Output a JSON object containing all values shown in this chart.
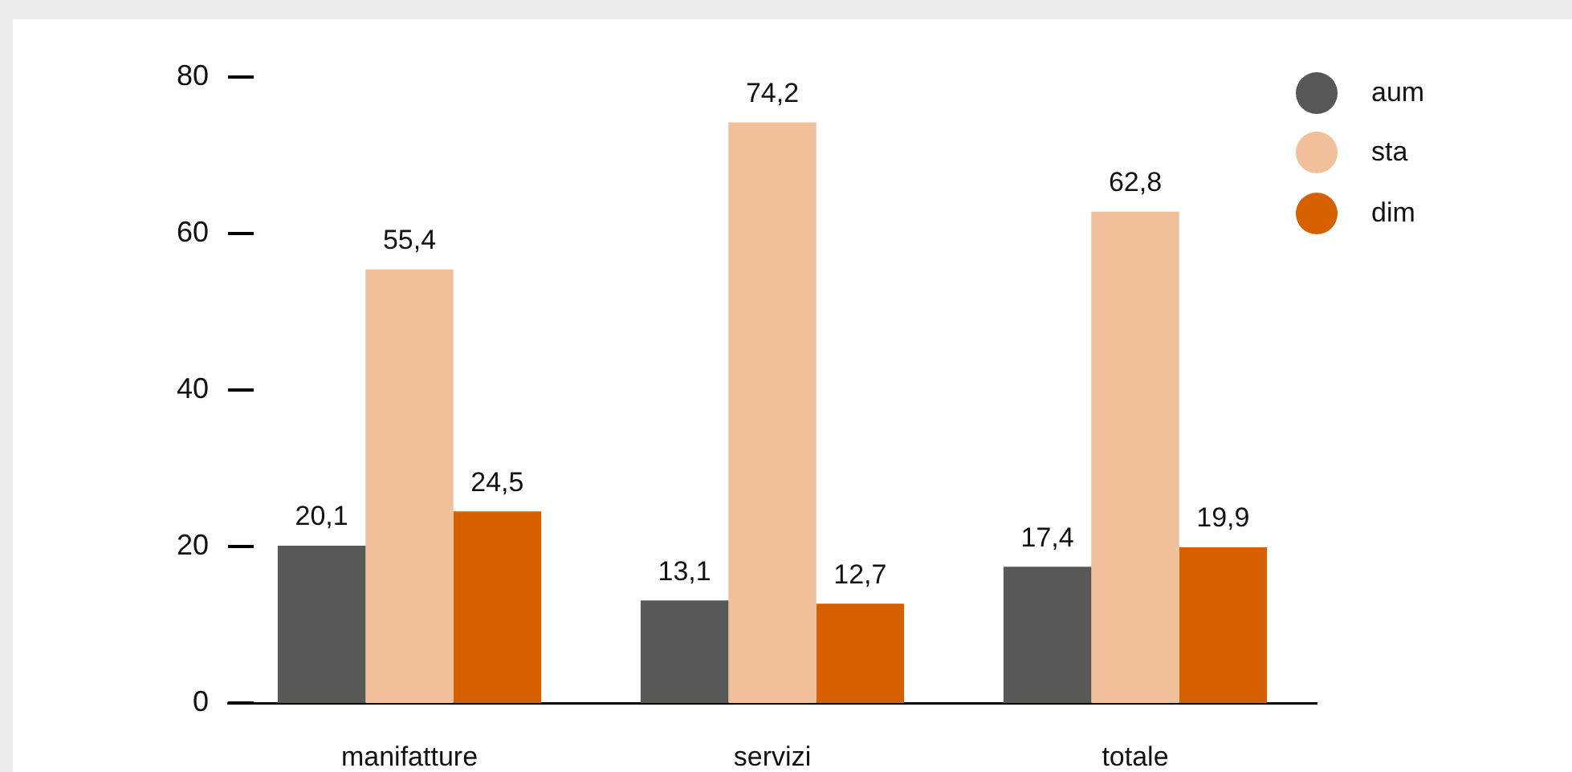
{
  "chart_data": {
    "type": "bar",
    "categories": [
      "manifatture",
      "servizi",
      "totale"
    ],
    "series": [
      {
        "name": "aum",
        "color": "#585856",
        "values": [
          20.1,
          13.1,
          17.4
        ],
        "value_labels": [
          "20,1",
          "13,1",
          "17,4"
        ]
      },
      {
        "name": "sta",
        "color": "#f0c09a",
        "values": [
          55.4,
          74.2,
          62.8
        ],
        "value_labels": [
          "55,4",
          "74,2",
          "62,8"
        ]
      },
      {
        "name": "dim",
        "color": "#d66000",
        "values": [
          24.5,
          12.7,
          19.9
        ],
        "value_labels": [
          "24,5",
          "12,7",
          "19,9"
        ]
      }
    ],
    "ylim": [
      0,
      80
    ],
    "yticks": [
      0,
      20,
      40,
      60,
      80
    ],
    "legend": "top right"
  }
}
